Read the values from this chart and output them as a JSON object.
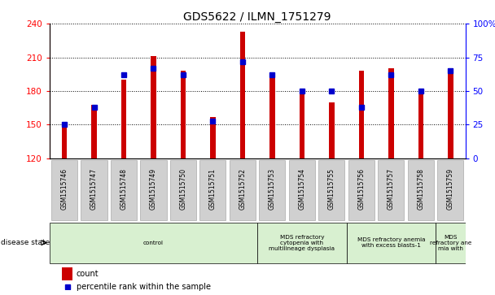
{
  "title": "GDS5622 / ILMN_1751279",
  "samples": [
    "GSM1515746",
    "GSM1515747",
    "GSM1515748",
    "GSM1515749",
    "GSM1515750",
    "GSM1515751",
    "GSM1515752",
    "GSM1515753",
    "GSM1515754",
    "GSM1515755",
    "GSM1515756",
    "GSM1515757",
    "GSM1515758",
    "GSM1515759"
  ],
  "count_values": [
    150,
    168,
    190,
    211,
    198,
    157,
    233,
    192,
    180,
    170,
    198,
    200,
    180,
    200
  ],
  "percentile_values": [
    25,
    38,
    62,
    67,
    62,
    28,
    72,
    62,
    50,
    50,
    38,
    62,
    50,
    65
  ],
  "ylim_left": [
    120,
    240
  ],
  "ylim_right": [
    0,
    100
  ],
  "yticks_left": [
    120,
    150,
    180,
    210,
    240
  ],
  "yticks_right": [
    0,
    25,
    50,
    75,
    100
  ],
  "yticklabels_right": [
    "0",
    "25",
    "50",
    "75",
    "100%"
  ],
  "bar_color": "#cc0000",
  "percentile_color": "#0000cc",
  "tick_label_bg": "#d0d0d0",
  "disease_groups": [
    {
      "label": "control",
      "start": 0,
      "end": 7,
      "color": "#d8f0d0"
    },
    {
      "label": "MDS refractory\ncytopenia with\nmultilineage dysplasia",
      "start": 7,
      "end": 10,
      "color": "#d8f0d0"
    },
    {
      "label": "MDS refractory anemia\nwith excess blasts-1",
      "start": 10,
      "end": 13,
      "color": "#d8f0d0"
    },
    {
      "label": "MDS\nrefractory ane\nmia with",
      "start": 13,
      "end": 14,
      "color": "#d8f0d0"
    }
  ],
  "legend_count_label": "count",
  "legend_percentile_label": "percentile rank within the sample",
  "disease_state_label": "disease state"
}
